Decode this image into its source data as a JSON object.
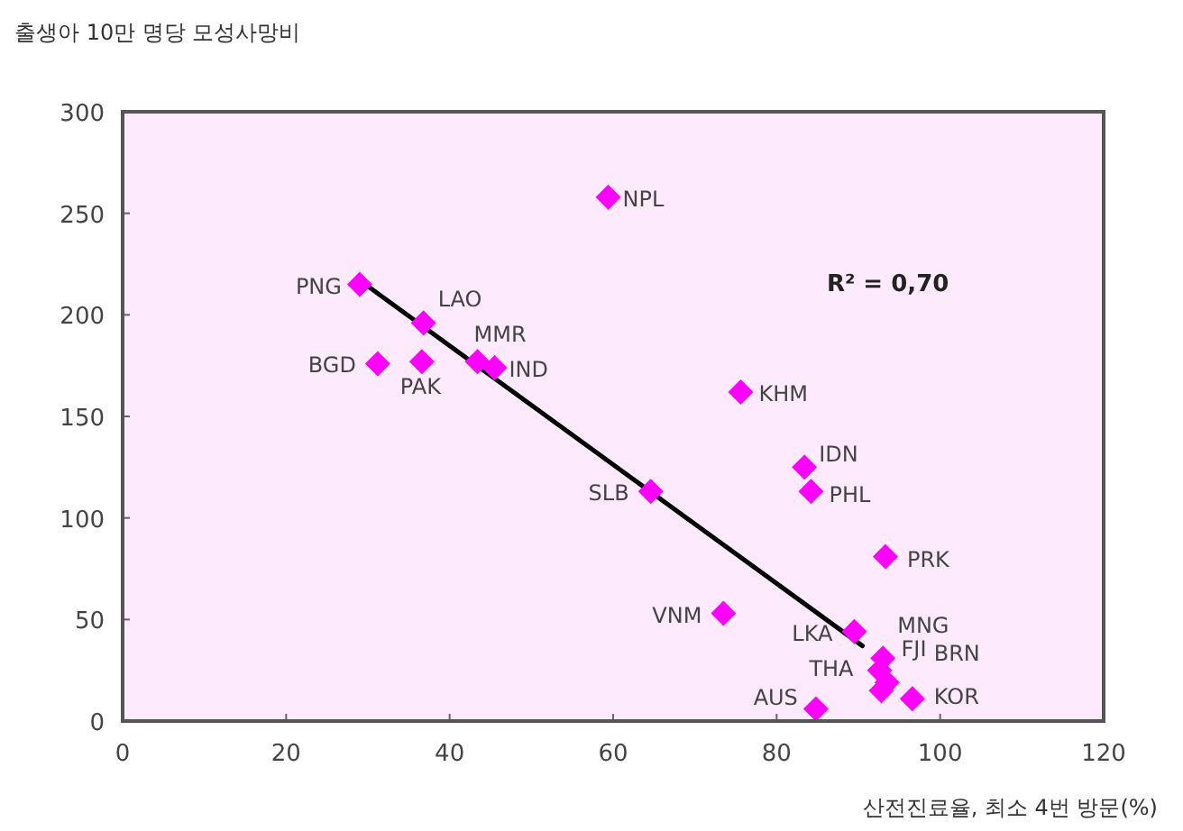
{
  "chart_data": {
    "type": "scatter",
    "title": "출생아 10만 명당 모성사망비",
    "xlabel": "산전진료율, 최소 4번 방문(%)",
    "xlim": [
      0,
      120
    ],
    "ylim": [
      0,
      300
    ],
    "xticks": [
      0,
      20,
      40,
      60,
      80,
      100,
      120
    ],
    "yticks": [
      0,
      50,
      100,
      150,
      200,
      250,
      300
    ],
    "series": [
      {
        "type": "scatter",
        "marker": "diamond",
        "color": "#ff00ff",
        "x": [
          59.4,
          29,
          36.8,
          31.2,
          36.6,
          43.4,
          45.5,
          75.6,
          83.4,
          84.2,
          64.6,
          93.3,
          73.5,
          89.5,
          93,
          92.6,
          93.5,
          96.6,
          92.8,
          84.8
        ],
        "values": [
          258,
          215,
          196,
          176,
          177,
          177,
          174,
          162,
          125,
          113,
          113,
          81,
          53,
          44,
          31,
          25,
          19,
          11,
          15,
          6
        ]
      },
      {
        "type": "line",
        "color": "#000000",
        "x": [
          29,
          90.5
        ],
        "values": [
          217,
          37
        ]
      }
    ],
    "annotations": [
      "R² = 0,70",
      {
        "text": "NPL",
        "x": 59.4,
        "y": 258
      },
      {
        "text": "PNG",
        "x": 29,
        "y": 215
      },
      {
        "text": "LAO",
        "x": 36.8,
        "y": 196
      },
      {
        "text": "BGD",
        "x": 31.2,
        "y": 176
      },
      {
        "text": "PAK",
        "x": 36.6,
        "y": 177
      },
      {
        "text": "MMR",
        "x": 43.4,
        "y": 177
      },
      {
        "text": "IND",
        "x": 45.5,
        "y": 174
      },
      {
        "text": "KHM",
        "x": 75.6,
        "y": 162
      },
      {
        "text": "IDN",
        "x": 83.4,
        "y": 125
      },
      {
        "text": "PHL",
        "x": 84.2,
        "y": 113
      },
      {
        "text": "SLB",
        "x": 64.6,
        "y": 113
      },
      {
        "text": "PRK",
        "x": 93.3,
        "y": 81
      },
      {
        "text": "VNM",
        "x": 73.5,
        "y": 53
      },
      {
        "text": "LKA",
        "x": 89.5,
        "y": 44
      },
      {
        "text": "MNG",
        "x": 93,
        "y": 31
      },
      {
        "text": "FJI",
        "x": 92.6,
        "y": 25
      },
      {
        "text": "BRN",
        "x": 93.5,
        "y": 19
      },
      {
        "text": "KOR",
        "x": 96.6,
        "y": 11
      },
      {
        "text": "THA",
        "x": 92.8,
        "y": 15
      },
      {
        "text": "AUS",
        "x": 84.8,
        "y": 6
      }
    ]
  }
}
